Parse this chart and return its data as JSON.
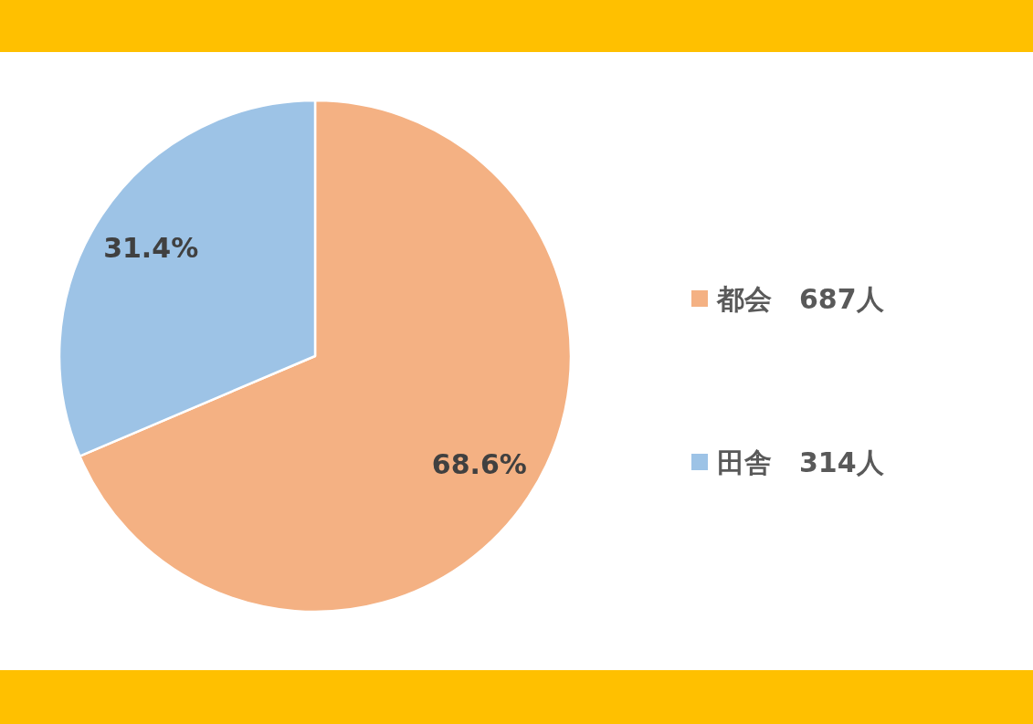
{
  "chart_data": {
    "type": "pie",
    "categories": [
      "都会　687人",
      "田舎　314人"
    ],
    "values": [
      68.6,
      31.4
    ],
    "colors": [
      "#f4b183",
      "#9dc3e6"
    ],
    "value_labels": [
      "68.6%",
      "31.4%"
    ],
    "legend": "right"
  }
}
